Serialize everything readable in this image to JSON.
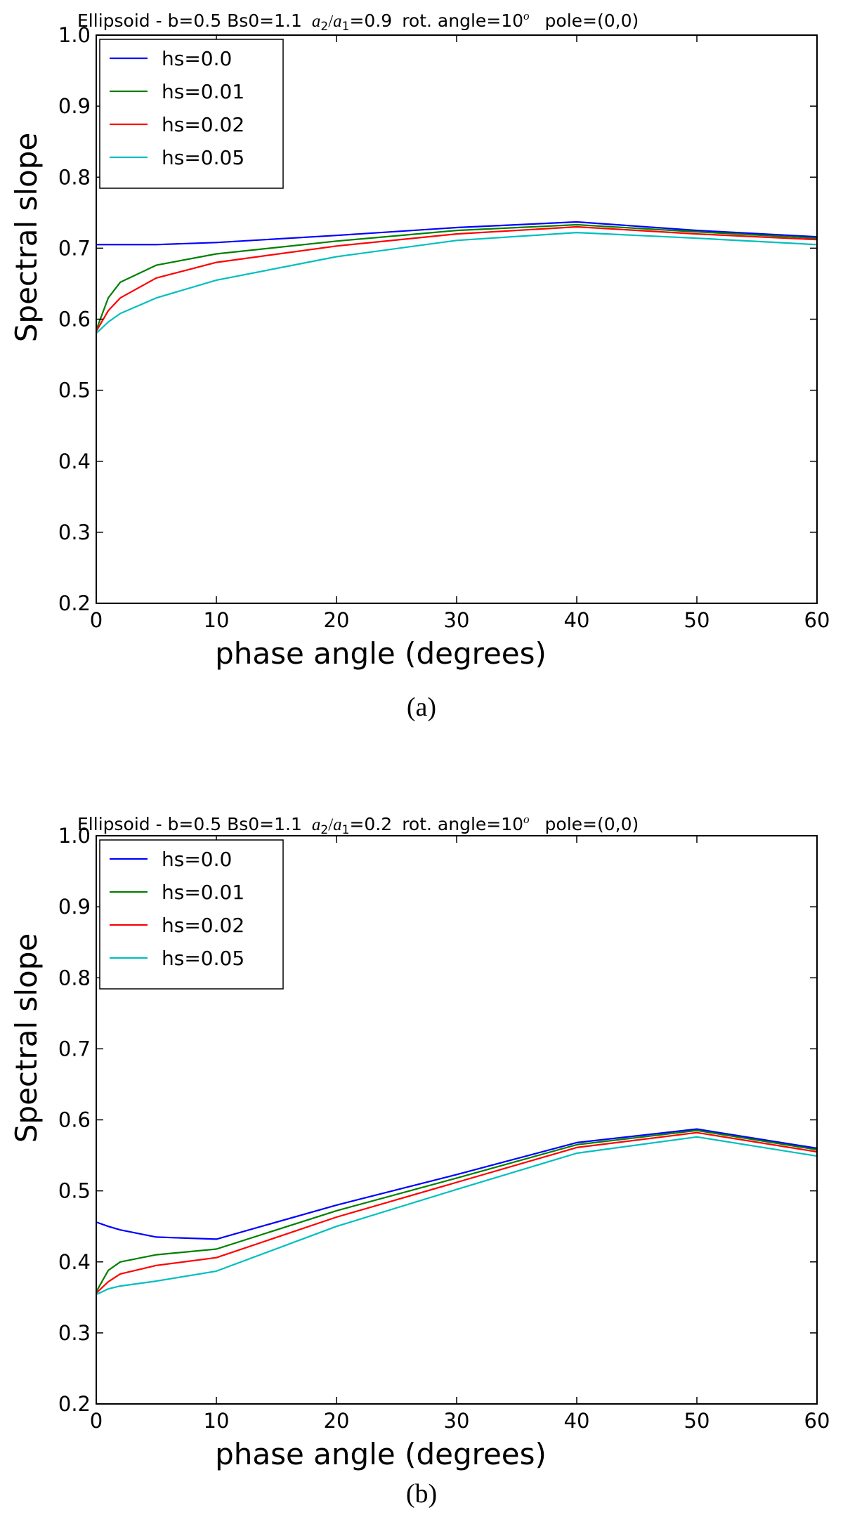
{
  "chart_data": [
    {
      "type": "line",
      "title_parts": {
        "prefix": "Ellipsoid -   b=0.5 Bs0=1.1",
        "ratio_lhs_var": "a",
        "ratio_lhs_sub": "2",
        "ratio_slash": "/",
        "ratio_rhs_var": "a",
        "ratio_rhs_sub": "1",
        "ratio_value": "=0.9",
        "rot_text": "rot. angle=10",
        "rot_sup": "o",
        "pole_text": "pole=(0,0)"
      },
      "xlabel": "phase angle (degrees)",
      "ylabel": "Spectral slope",
      "xlim": [
        0,
        60
      ],
      "ylim": [
        0.2,
        1.0
      ],
      "xticks": [
        0,
        10,
        20,
        30,
        40,
        50,
        60
      ],
      "yticks": [
        0.2,
        0.3,
        0.4,
        0.5,
        0.6,
        0.7,
        0.8,
        0.9,
        1.0
      ],
      "x": [
        0,
        1,
        2,
        5,
        10,
        20,
        30,
        40,
        50,
        60
      ],
      "legend_loc": "upper-left",
      "grid": false,
      "series": [
        {
          "name": "hs=0.0",
          "color": "#0000ff",
          "values": [
            0.705,
            0.705,
            0.705,
            0.705,
            0.708,
            0.718,
            0.729,
            0.737,
            0.725,
            0.716
          ]
        },
        {
          "name": "hs=0.01",
          "color": "#008000",
          "values": [
            0.585,
            0.63,
            0.652,
            0.676,
            0.692,
            0.71,
            0.725,
            0.733,
            0.723,
            0.714
          ]
        },
        {
          "name": "hs=0.02",
          "color": "#ff0000",
          "values": [
            0.583,
            0.612,
            0.63,
            0.658,
            0.68,
            0.703,
            0.72,
            0.73,
            0.72,
            0.712
          ]
        },
        {
          "name": "hs=0.05",
          "color": "#00bfbf",
          "values": [
            0.58,
            0.596,
            0.608,
            0.63,
            0.655,
            0.688,
            0.711,
            0.722,
            0.714,
            0.705
          ]
        }
      ],
      "panel_label": "(a)"
    },
    {
      "type": "line",
      "title_parts": {
        "prefix": "Ellipsoid -   b=0.5 Bs0=1.1",
        "ratio_lhs_var": "a",
        "ratio_lhs_sub": "2",
        "ratio_slash": "/",
        "ratio_rhs_var": "a",
        "ratio_rhs_sub": "1",
        "ratio_value": "=0.2",
        "rot_text": "rot. angle=10",
        "rot_sup": "o",
        "pole_text": "pole=(0,0)"
      },
      "xlabel": "phase angle (degrees)",
      "ylabel": "Spectral slope",
      "xlim": [
        0,
        60
      ],
      "ylim": [
        0.2,
        1.0
      ],
      "xticks": [
        0,
        10,
        20,
        30,
        40,
        50,
        60
      ],
      "yticks": [
        0.2,
        0.3,
        0.4,
        0.5,
        0.6,
        0.7,
        0.8,
        0.9,
        1.0
      ],
      "x": [
        0,
        1,
        2,
        5,
        10,
        20,
        30,
        40,
        50,
        60
      ],
      "legend_loc": "upper-left",
      "grid": false,
      "series": [
        {
          "name": "hs=0.0",
          "color": "#0000ff",
          "values": [
            0.456,
            0.45,
            0.445,
            0.435,
            0.432,
            0.48,
            0.523,
            0.568,
            0.587,
            0.56
          ]
        },
        {
          "name": "hs=0.01",
          "color": "#008000",
          "values": [
            0.358,
            0.388,
            0.4,
            0.41,
            0.418,
            0.472,
            0.518,
            0.565,
            0.585,
            0.558
          ]
        },
        {
          "name": "hs=0.02",
          "color": "#ff0000",
          "values": [
            0.356,
            0.372,
            0.383,
            0.395,
            0.406,
            0.463,
            0.512,
            0.561,
            0.582,
            0.555
          ]
        },
        {
          "name": "hs=0.05",
          "color": "#00bfbf",
          "values": [
            0.354,
            0.362,
            0.366,
            0.373,
            0.387,
            0.45,
            0.502,
            0.553,
            0.576,
            0.549
          ]
        }
      ],
      "panel_label": "(b)"
    }
  ]
}
